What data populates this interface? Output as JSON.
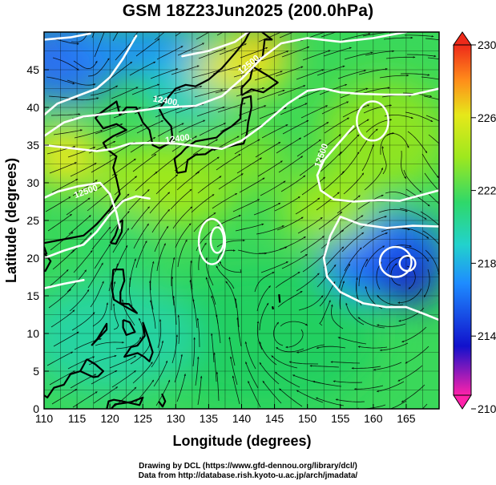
{
  "title": "GSM 18Z23Jun2025 (200.0hPa)",
  "map": {
    "x_axis": {
      "label": "Longitude (degrees)",
      "range": [
        110,
        170
      ],
      "ticks": [
        "110",
        "115",
        "120",
        "125",
        "130",
        "135",
        "140",
        "145",
        "150",
        "155",
        "160",
        "165"
      ],
      "tick_values": [
        110,
        115,
        120,
        125,
        130,
        135,
        140,
        145,
        150,
        155,
        160,
        165
      ]
    },
    "y_axis": {
      "label": "Latitude (degrees)",
      "range": [
        0,
        50
      ],
      "ticks": [
        "0",
        "5",
        "10",
        "15",
        "20",
        "25",
        "30",
        "35",
        "40",
        "45"
      ],
      "tick_values": [
        0,
        5,
        10,
        15,
        20,
        25,
        30,
        35,
        40,
        45
      ]
    },
    "grid_lon_step": 2.5,
    "grid_lat_step": 2.5,
    "contour_labels": [
      {
        "text": "12400.",
        "lon": 128.5,
        "lat": 40.5,
        "angle": 10
      },
      {
        "text": "12400.",
        "lon": 130.5,
        "lat": 35.5,
        "angle": -8
      },
      {
        "text": "12500",
        "lon": 116.5,
        "lat": 28.5,
        "angle": -20
      },
      {
        "text": "12500.",
        "lon": 141.5,
        "lat": 45.5,
        "angle": -40
      },
      {
        "text": "12500",
        "lon": 152.5,
        "lat": 33.5,
        "angle": -70
      }
    ]
  },
  "colorbar": {
    "min": 210,
    "max": 230,
    "labels": [
      "230",
      "226",
      "222",
      "218",
      "214",
      "210"
    ],
    "label_values": [
      230,
      226,
      222,
      218,
      214,
      210
    ],
    "colors": [
      "#ff22aa",
      "#1111cc",
      "#1e8cff",
      "#22d2cc",
      "#2fd86a",
      "#9ee81e",
      "#e6e81a",
      "#ff8c1a",
      "#ee2a1a"
    ]
  },
  "credits": [
    "Drawing by DCL (https://www.gfd-dennou.org/library/dcl/)",
    "Data from http://database.rish.kyoto-u.ac.jp/arch/jmadata/"
  ]
}
